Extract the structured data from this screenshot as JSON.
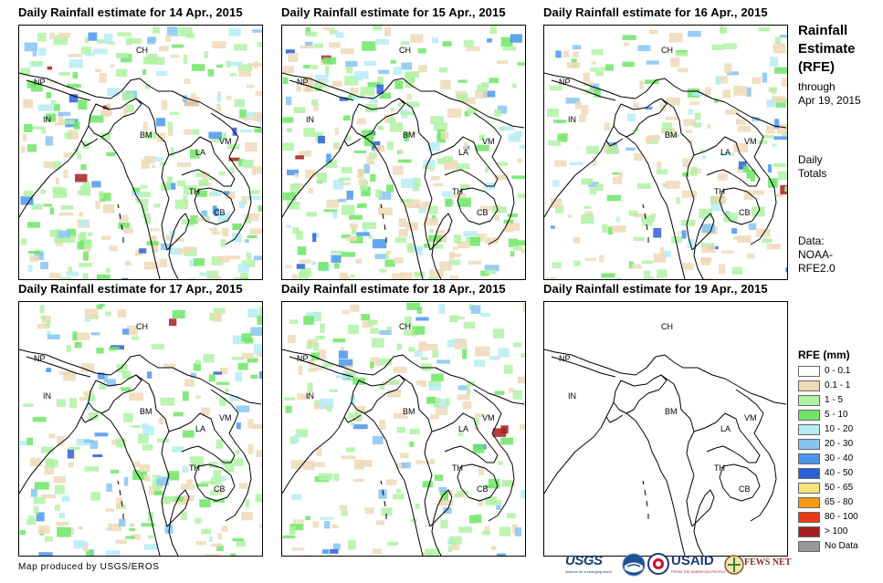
{
  "panels": [
    {
      "title": "Daily Rainfall estimate for 14 Apr., 2015",
      "rain_level": "high"
    },
    {
      "title": "Daily Rainfall estimate for 15 Apr., 2015",
      "rain_level": "high"
    },
    {
      "title": "Daily Rainfall estimate for 16 Apr., 2015",
      "rain_level": "medium"
    },
    {
      "title": "Daily Rainfall estimate for 17 Apr., 2015",
      "rain_level": "medium"
    },
    {
      "title": "Daily Rainfall estimate for 18 Apr., 2015",
      "rain_level": "medium"
    },
    {
      "title": "Daily Rainfall estimate for 19 Apr., 2015",
      "rain_level": "none"
    }
  ],
  "country_labels": [
    "CH",
    "NP",
    "IN",
    "BM",
    "LA",
    "VM",
    "TH",
    "CB"
  ],
  "sidebar": {
    "title_lines": [
      "Rainfall",
      "Estimate",
      "(RFE)"
    ],
    "through_label": "through",
    "through_date": "Apr 19, 2015",
    "daily_lines": [
      "Daily",
      "Totals"
    ],
    "data_lines": [
      "Data:",
      "NOAA-",
      "RFE2.0"
    ]
  },
  "legend": {
    "title": "RFE (mm)",
    "items": [
      {
        "label": "0 - 0.1",
        "color": "#ffffff"
      },
      {
        "label": "0.1 - 1",
        "color": "#eed9b8"
      },
      {
        "label": "1 - 5",
        "color": "#b0f2a4"
      },
      {
        "label": "5 - 10",
        "color": "#6ee566"
      },
      {
        "label": "10 - 20",
        "color": "#b6ecf5"
      },
      {
        "label": "20 - 30",
        "color": "#87c4f1"
      },
      {
        "label": "30 - 40",
        "color": "#4a96ec"
      },
      {
        "label": "40 - 50",
        "color": "#2c5fd9"
      },
      {
        "label": "50 - 65",
        "color": "#f7e27a"
      },
      {
        "label": "65 - 80",
        "color": "#f59a0b"
      },
      {
        "label": "80 - 100",
        "color": "#ea3a14"
      },
      {
        "label": "> 100",
        "color": "#a5201e"
      },
      {
        "label": "No Data",
        "color": "#999999"
      }
    ]
  },
  "credit": "Map produced by USGS/EROS",
  "logos": {
    "usgs": "USGS",
    "usgs_tag": "science for a changing world",
    "usaid": "USAID",
    "usaid_tag": "FROM THE AMERICAN PEOPLE",
    "fews": "FEWS NET"
  }
}
